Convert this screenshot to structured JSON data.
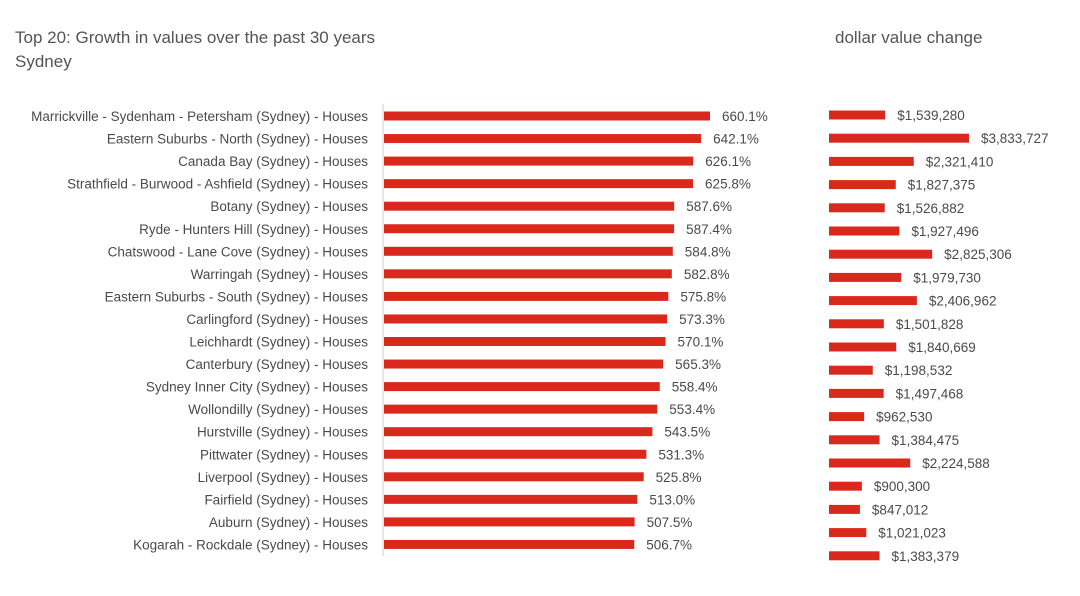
{
  "chart_data": [
    {
      "type": "bar",
      "orientation": "horizontal",
      "title": "Top 20:  Growth in values over the past 30 years",
      "subtitle": "Sydney",
      "categories": [
        "Marrickville - Sydenham - Petersham (Sydney) - Houses",
        "Eastern Suburbs - North (Sydney) - Houses",
        "Canada Bay (Sydney) - Houses",
        "Strathfield - Burwood - Ashfield (Sydney) - Houses",
        "Botany (Sydney) - Houses",
        "Ryde - Hunters Hill (Sydney) - Houses",
        "Chatswood - Lane Cove (Sydney) - Houses",
        "Warringah (Sydney) - Houses",
        "Eastern Suburbs - South (Sydney) - Houses",
        "Carlingford (Sydney) - Houses",
        "Leichhardt (Sydney) - Houses",
        "Canterbury (Sydney) - Houses",
        "Sydney Inner City (Sydney) - Houses",
        "Wollondilly (Sydney) - Houses",
        "Hurstville (Sydney) - Houses",
        "Pittwater (Sydney) - Houses",
        "Liverpool (Sydney) - Houses",
        "Fairfield (Sydney) - Houses",
        "Auburn (Sydney) - Houses",
        "Kogarah - Rockdale (Sydney) - Houses"
      ],
      "values": [
        660.1,
        642.1,
        626.1,
        625.8,
        587.6,
        587.4,
        584.8,
        582.8,
        575.8,
        573.3,
        570.1,
        565.3,
        558.4,
        553.4,
        543.5,
        531.3,
        525.8,
        513.0,
        507.5,
        506.7
      ],
      "data_labels": [
        "660.1%",
        "642.1%",
        "626.1%",
        "625.8%",
        "587.6%",
        "587.4%",
        "584.8%",
        "582.8%",
        "575.8%",
        "573.3%",
        "570.1%",
        "565.3%",
        "558.4%",
        "553.4%",
        "543.5%",
        "531.3%",
        "525.8%",
        "513.0%",
        "507.5%",
        "506.7%"
      ],
      "xlim": [
        0,
        700
      ],
      "grid": false,
      "legend": "none",
      "bar_color": "#d9291c"
    },
    {
      "type": "bar",
      "orientation": "horizontal",
      "title": "dollar value change",
      "values": [
        1539280,
        3833727,
        2321410,
        1827375,
        1526882,
        1927496,
        2825306,
        1979730,
        2406962,
        1501828,
        1840669,
        1198532,
        1497468,
        962530,
        1384475,
        2224588,
        900300,
        847012,
        1021023,
        1383379
      ],
      "data_labels": [
        "$1,539,280",
        "$3,833,727",
        "$2,321,410",
        "$1,827,375",
        "$1,526,882",
        "$1,927,496",
        "$2,825,306",
        "$1,979,730",
        "$2,406,962",
        "$1,501,828",
        "$1,840,669",
        "$1,198,532",
        "$1,497,468",
        "$962,530",
        "$1,384,475",
        "$2,224,588",
        "$900,300",
        "$847,012",
        "$1,021,023",
        "$1,383,379"
      ],
      "xlim": [
        0,
        3833727
      ],
      "grid": false,
      "legend": "none",
      "bar_color": "#d9291c"
    }
  ]
}
